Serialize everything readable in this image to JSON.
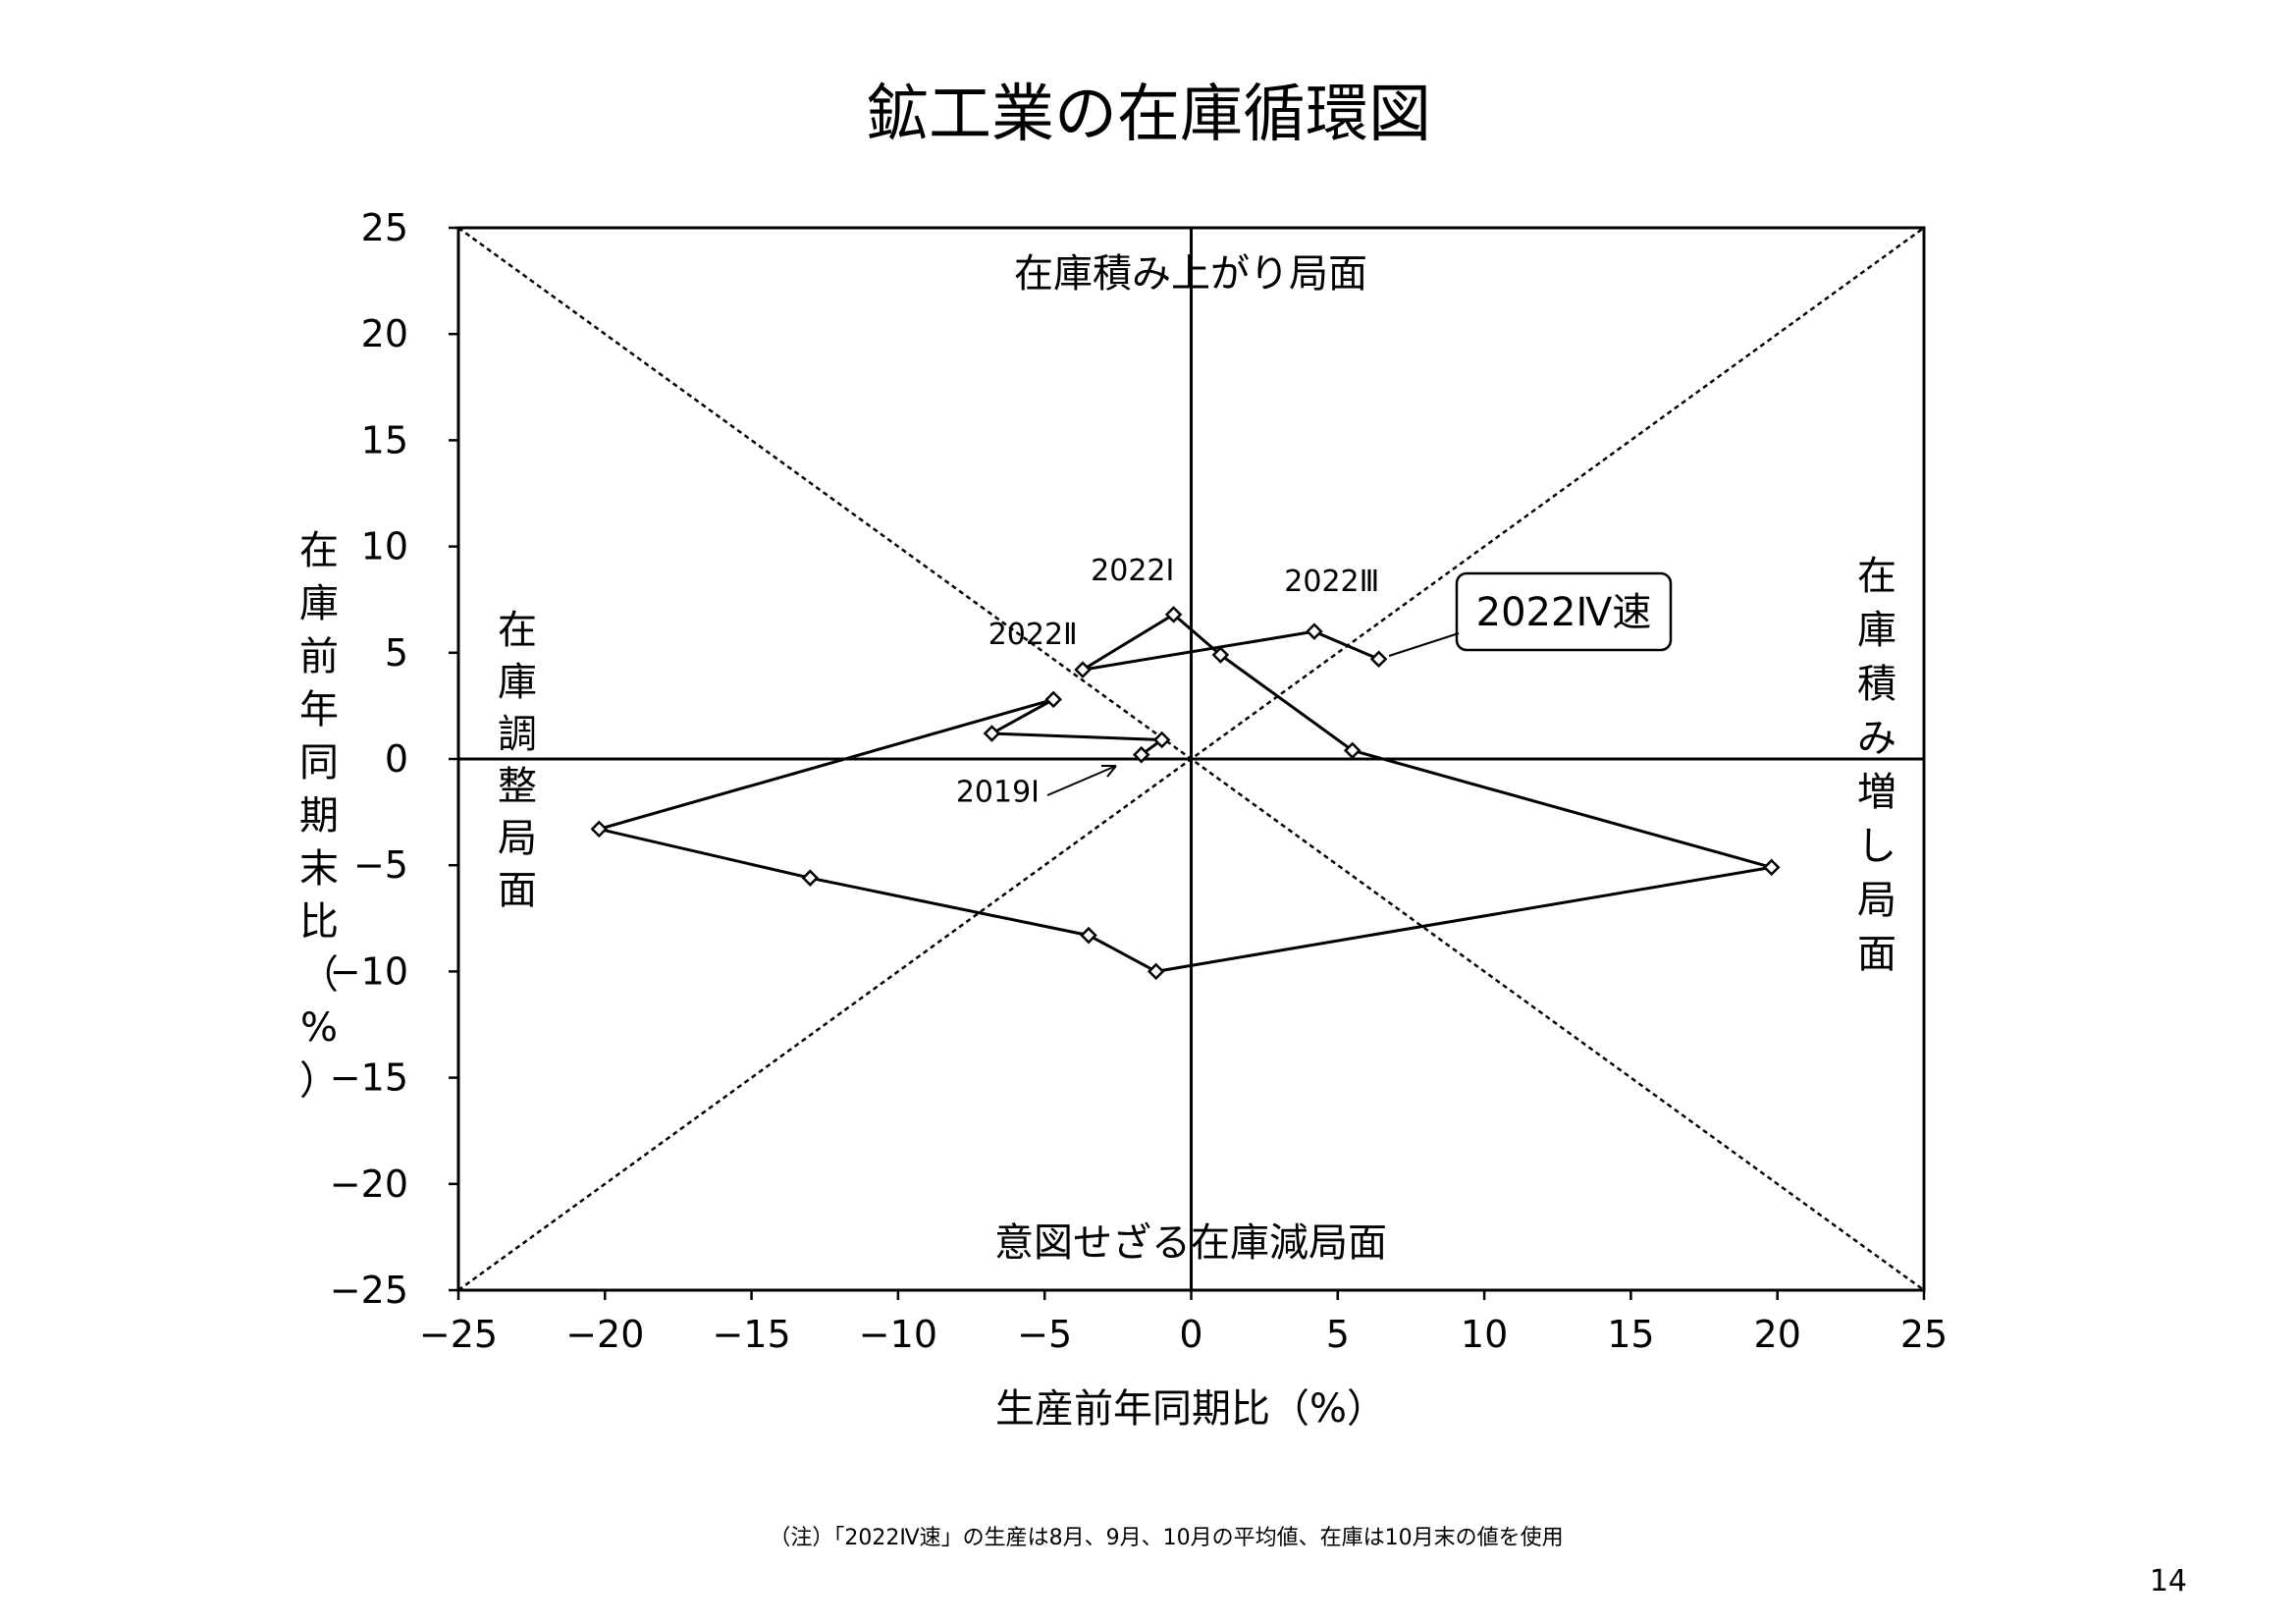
{
  "chart_data": {
    "type": "scatter",
    "title": "鉱工業の在庫循環図",
    "xlabel": "生産前年同期比（%）",
    "ylabel": "在庫前年同期末比（%）",
    "xlim": [
      -25,
      25
    ],
    "ylim": [
      -25,
      25
    ],
    "xticks": [
      "−25",
      "−20",
      "−15",
      "−10",
      "−5",
      "0",
      "5",
      "10",
      "15",
      "20",
      "25"
    ],
    "yticks": [
      "25",
      "20",
      "15",
      "10",
      "5",
      "0",
      "−5",
      "−10",
      "−15",
      "−20",
      "−25"
    ],
    "grid": false,
    "legend": "none",
    "connected": true,
    "marker": "diamond",
    "series": [
      {
        "points": [
          {
            "x": -1.7,
            "y": 0.2
          },
          {
            "x": -1.0,
            "y": 0.9
          },
          {
            "x": -6.8,
            "y": 1.2
          },
          {
            "x": -4.7,
            "y": 2.8
          },
          {
            "x": -20.2,
            "y": -3.3
          },
          {
            "x": -13.0,
            "y": -5.6
          },
          {
            "x": -3.5,
            "y": -8.3
          },
          {
            "x": -1.2,
            "y": -10.0
          },
          {
            "x": 19.8,
            "y": -5.1
          },
          {
            "x": 5.5,
            "y": 0.4
          },
          {
            "x": 1.0,
            "y": 4.9
          },
          {
            "x": -0.6,
            "y": 6.8
          },
          {
            "x": -3.7,
            "y": 4.2
          },
          {
            "x": 4.2,
            "y": 6.0
          },
          {
            "x": 6.4,
            "y": 4.7
          }
        ]
      }
    ],
    "point_labels": [
      {
        "text": "2022Ⅰ",
        "x": -2.0,
        "y": 8.4
      },
      {
        "text": "2022Ⅱ",
        "x": -5.4,
        "y": 5.4
      },
      {
        "text": "2022Ⅲ",
        "x": 4.8,
        "y": 7.9
      },
      {
        "text": "2019Ⅰ",
        "x": -6.6,
        "y": -2.0
      }
    ],
    "callout": {
      "text": "2022Ⅳ速"
    },
    "regions": {
      "top": "在庫積み上がり局面",
      "bottom": "意図せざる在庫減局面",
      "left": "在庫調整局面",
      "right": "在庫積み増し局面"
    }
  },
  "footer": {
    "note": "（注）「2022Ⅳ速」の生産は8月、9月、10月の平均値、在庫は10月末の値を使用",
    "page_number": "14"
  }
}
